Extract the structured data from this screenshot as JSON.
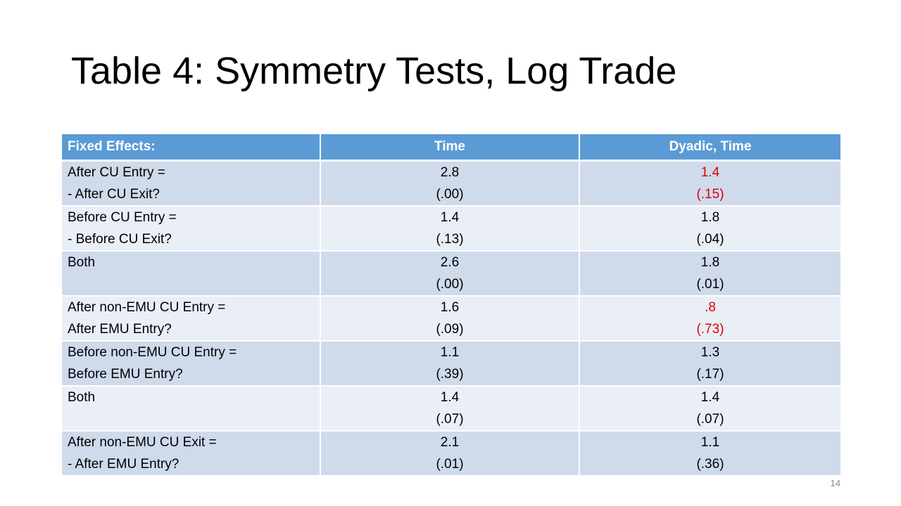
{
  "title": "Table 4: Symmetry Tests, Log Trade",
  "table": {
    "headers": [
      "Fixed Effects:",
      "Time",
      "Dyadic, Time"
    ],
    "rows": [
      {
        "label": [
          "After CU Entry =",
          "- After CU Exit?"
        ],
        "time": [
          "2.8",
          "(.00)"
        ],
        "dyadic": [
          "1.4",
          "(.15)"
        ],
        "dyadic_highlight": true
      },
      {
        "label": [
          "Before CU Entry =",
          "- Before CU Exit?"
        ],
        "time": [
          "1.4",
          "(.13)"
        ],
        "dyadic": [
          "1.8",
          "(.04)"
        ],
        "dyadic_highlight": false
      },
      {
        "label": [
          "Both"
        ],
        "time": [
          "2.6",
          "(.00)"
        ],
        "dyadic": [
          "1.8",
          "(.01)"
        ],
        "dyadic_highlight": false
      },
      {
        "label": [
          "After non-EMU CU Entry =",
          "After EMU Entry?"
        ],
        "time": [
          "1.6",
          "(.09)"
        ],
        "dyadic": [
          ".8",
          "(.73)"
        ],
        "dyadic_highlight": true
      },
      {
        "label": [
          "Before non-EMU CU Entry =",
          "Before EMU Entry?"
        ],
        "time": [
          "1.1",
          "(.39)"
        ],
        "dyadic": [
          "1.3",
          "(.17)"
        ],
        "dyadic_highlight": false
      },
      {
        "label": [
          "Both"
        ],
        "time": [
          "1.4",
          "(.07)"
        ],
        "dyadic": [
          "1.4",
          "(.07)"
        ],
        "dyadic_highlight": false
      },
      {
        "label": [
          "After non-EMU CU Exit =",
          "- After EMU Entry?"
        ],
        "time": [
          "2.1",
          "(.01)"
        ],
        "dyadic": [
          "1.1",
          "(.36)"
        ],
        "dyadic_highlight": false
      }
    ]
  },
  "highlight_color": "#e00000",
  "header_color": "#5b9bd5",
  "page_number": "14"
}
